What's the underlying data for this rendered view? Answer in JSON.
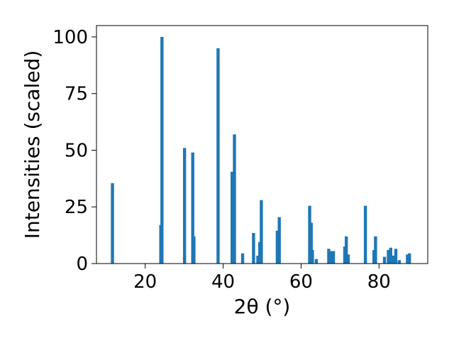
{
  "chart_data": {
    "type": "bar",
    "xlabel": "2θ (°)",
    "ylabel": "Intensities (scaled)",
    "xlim": [
      7.5,
      92.5
    ],
    "ylim": [
      0,
      105
    ],
    "xticks": [
      20,
      40,
      60,
      80
    ],
    "yticks": [
      0,
      25,
      50,
      75,
      100
    ],
    "bar_color": "#1f77b4",
    "bar_width": 0.8,
    "grid": false,
    "series": [
      {
        "x": [
          11.6,
          24.0,
          24.3,
          30.1,
          32.2,
          32.5,
          38.7,
          42.3,
          42.9,
          45.0,
          47.8,
          48.9,
          49.4,
          49.8,
          53.9,
          54.4,
          62.2,
          62.6,
          62.9,
          63.9,
          67.1,
          67.7,
          68.3,
          71.2,
          71.6,
          72.1,
          76.5,
          78.7,
          79.1,
          81.4,
          82.4,
          83.0,
          83.7,
          84.3,
          85.2,
          87.3,
          87.8
        ],
        "values": [
          35.5,
          17.0,
          100,
          51.0,
          49.0,
          12.0,
          95.0,
          40.5,
          57.0,
          4.5,
          13.5,
          3.5,
          9.5,
          28.0,
          14.5,
          20.5,
          25.5,
          18.0,
          6.0,
          2.0,
          6.5,
          5.5,
          5.5,
          7.5,
          12.0,
          4.0,
          25.5,
          6.0,
          12.0,
          3.0,
          6.0,
          7.0,
          3.5,
          6.5,
          1.5,
          4.0,
          4.5
        ]
      }
    ]
  }
}
